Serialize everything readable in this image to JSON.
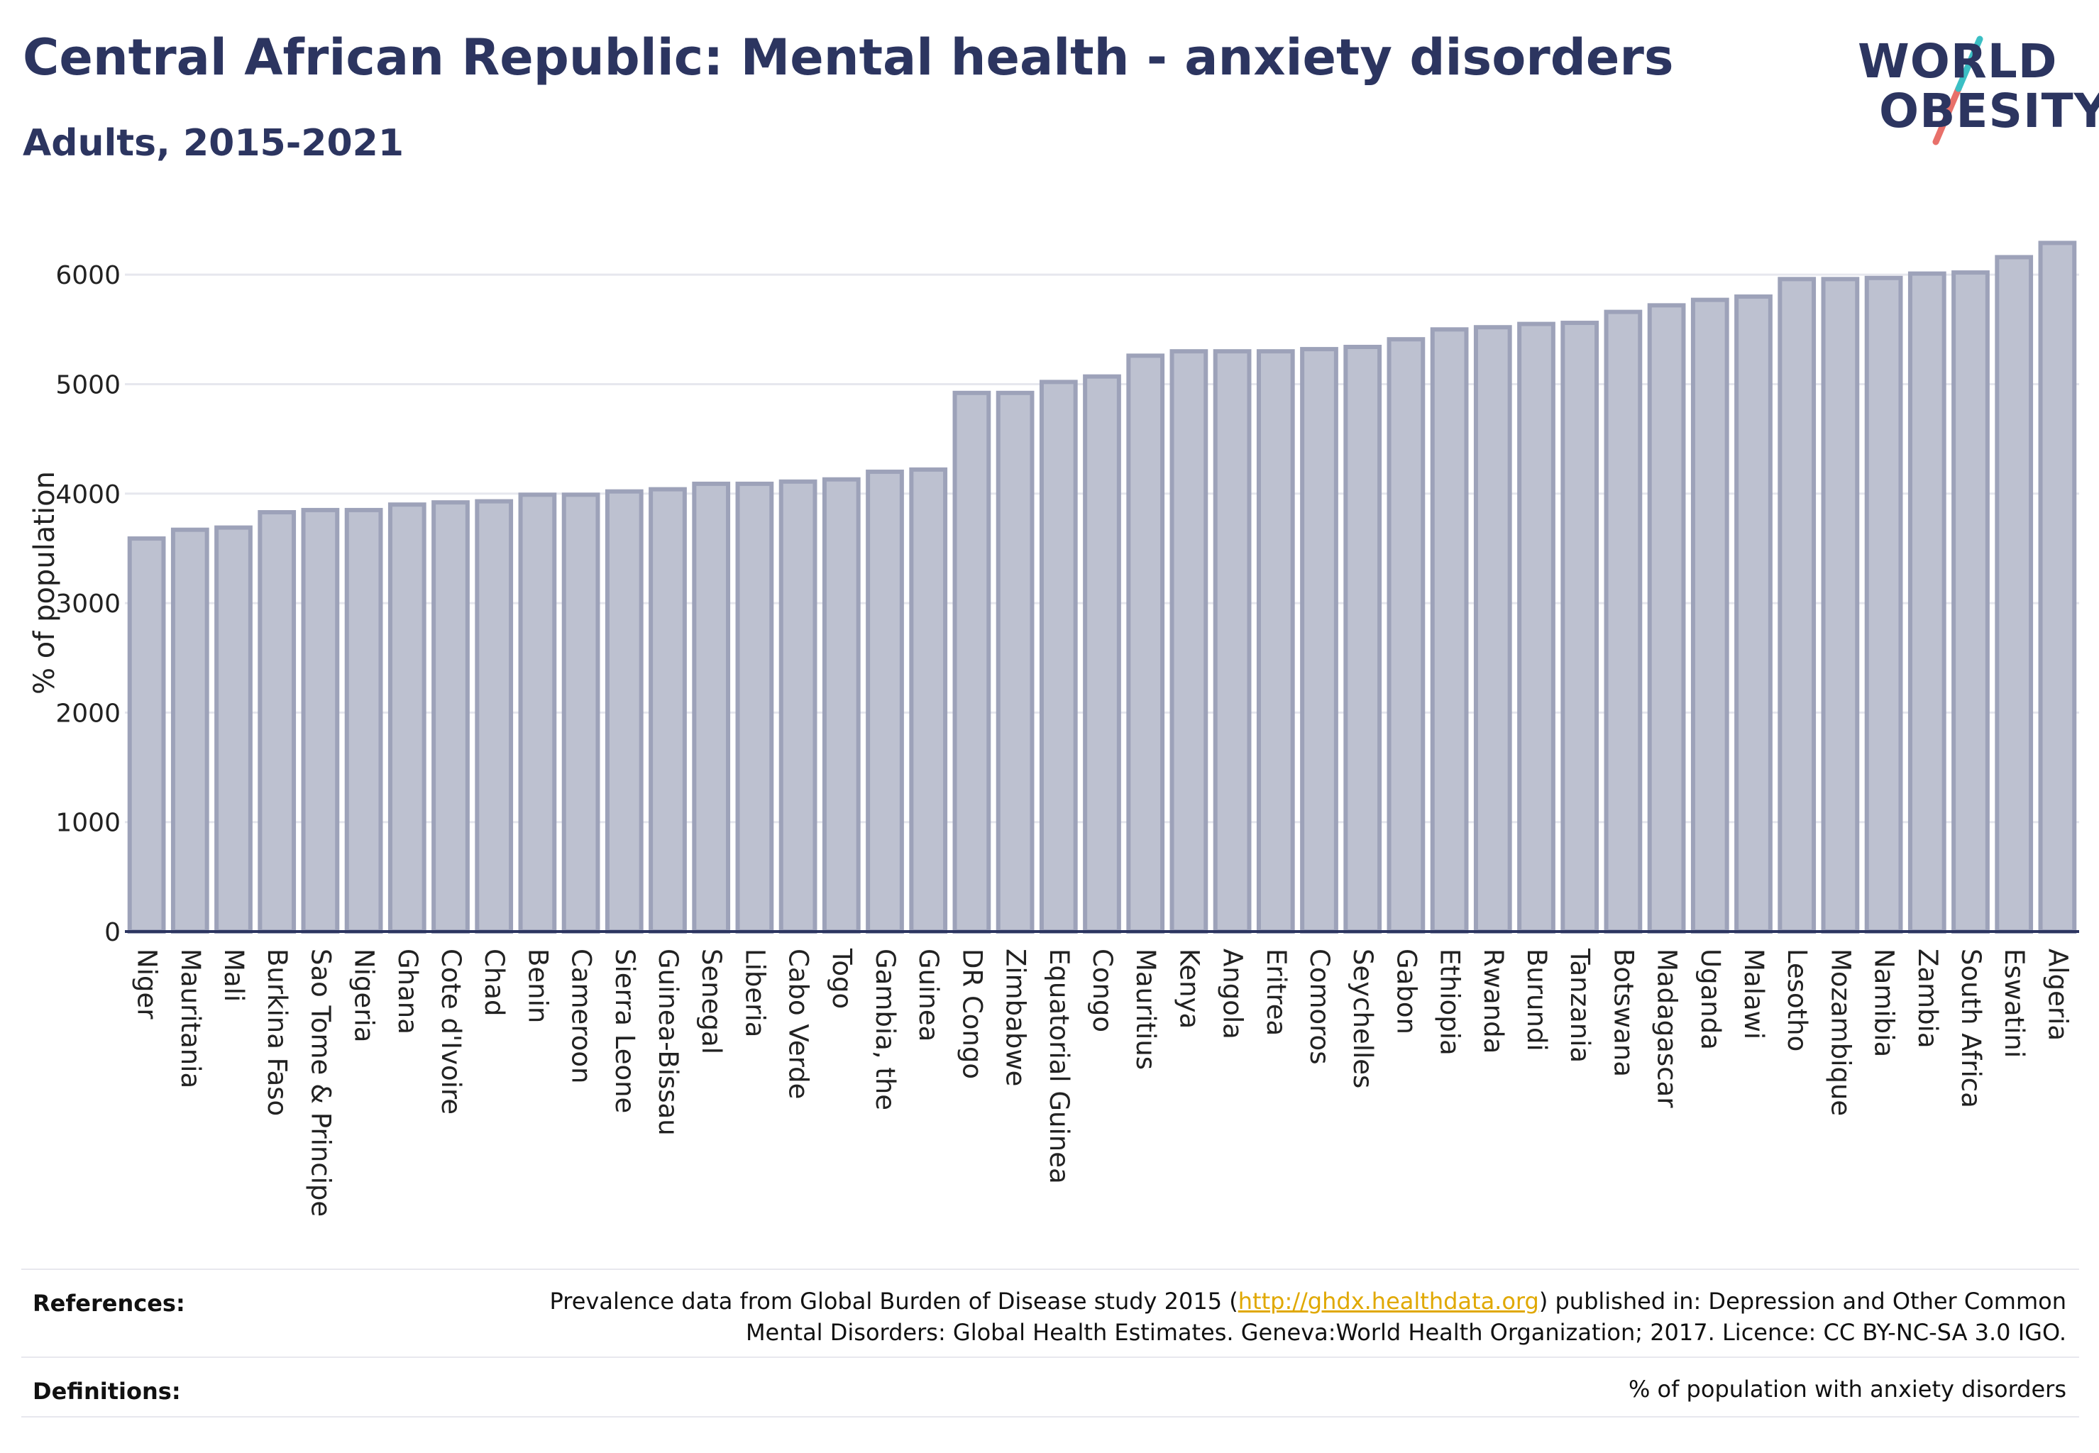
{
  "header": {
    "title": "Central African Republic: Mental health - anxiety disorders",
    "subtitle": "Adults, 2015-2021"
  },
  "logo": {
    "line1": "WORLD",
    "line2": "OBESITY",
    "accent_colors": [
      "#3bbfc4",
      "#e8706a"
    ]
  },
  "chart_data": {
    "type": "bar",
    "ylabel": "% of population",
    "xlabel": "",
    "ylim": [
      0,
      6500
    ],
    "yticks": [
      0,
      1000,
      2000,
      3000,
      4000,
      5000,
      6000
    ],
    "grid": true,
    "bar_fill": "#bdc1d0",
    "bar_stroke": "#9da2b9",
    "categories": [
      "Niger",
      "Mauritania",
      "Mali",
      "Burkina Faso",
      "Sao Tome & Principe",
      "Nigeria",
      "Ghana",
      "Cote d'Ivoire",
      "Chad",
      "Benin",
      "Cameroon",
      "Sierra Leone",
      "Guinea-Bissau",
      "Senegal",
      "Liberia",
      "Cabo Verde",
      "Togo",
      "Gambia, the",
      "Guinea",
      "DR Congo",
      "Zimbabwe",
      "Equatorial Guinea",
      "Congo",
      "Mauritius",
      "Kenya",
      "Angola",
      "Eritrea",
      "Comoros",
      "Seychelles",
      "Gabon",
      "Ethiopia",
      "Rwanda",
      "Burundi",
      "Tanzania",
      "Botswana",
      "Madagascar",
      "Uganda",
      "Malawi",
      "Lesotho",
      "Mozambique",
      "Namibia",
      "Zambia",
      "South Africa",
      "Eswatini",
      "Algeria"
    ],
    "values": [
      3590,
      3670,
      3690,
      3830,
      3850,
      3850,
      3900,
      3920,
      3930,
      3990,
      3990,
      4020,
      4040,
      4090,
      4090,
      4110,
      4130,
      4200,
      4220,
      4920,
      4920,
      5020,
      5070,
      5260,
      5300,
      5300,
      5300,
      5320,
      5340,
      5410,
      5500,
      5520,
      5550,
      5560,
      5660,
      5720,
      5770,
      5800,
      5960,
      5960,
      5970,
      6010,
      6020,
      6160,
      6290
    ]
  },
  "footer": {
    "references_label": "References:",
    "references_text_before": "Prevalence data from Global Burden of Disease study 2015 (",
    "references_link": "http://ghdx.healthdata.org",
    "references_text_after": ") published in: Depression and Other Common",
    "references_line2": "Mental Disorders: Global Health Estimates. Geneva:World Health Organization; 2017. Licence: CC BY-NC-SA 3.0 IGO.",
    "definitions_label": "Definitions:",
    "definitions_text": "% of population with anxiety disorders"
  }
}
